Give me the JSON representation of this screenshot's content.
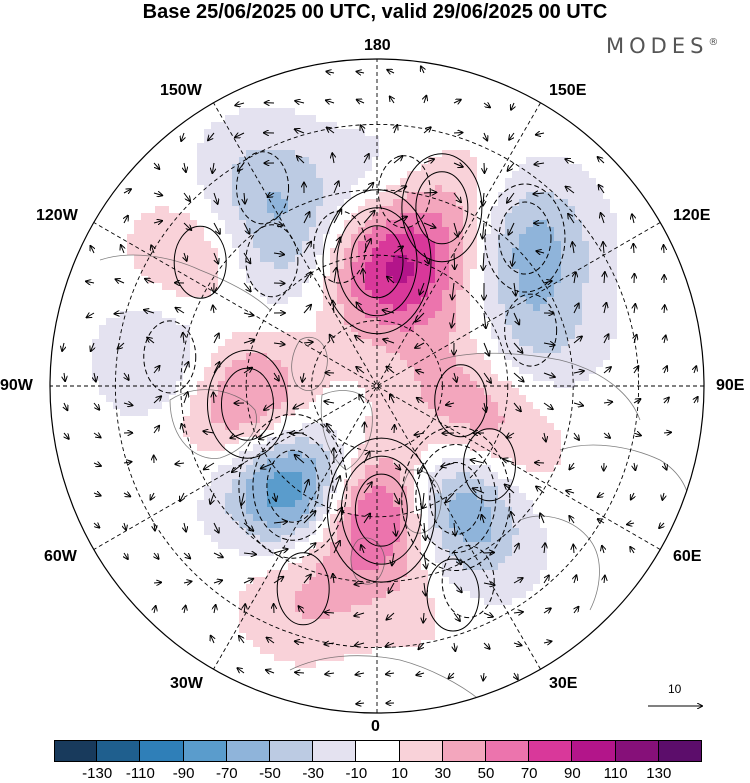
{
  "title": "Base 25/06/2025 00 UTC, valid 29/06/2025 00 UTC",
  "brand": {
    "text": "MODES",
    "mark": "®"
  },
  "longitude_labels": {
    "top": "180",
    "bottom": "0",
    "left": "90W",
    "right": "90E",
    "upper_left_1": "150W",
    "upper_left_2": "120W",
    "upper_right_1": "150E",
    "upper_right_2": "120E",
    "lower_left_1": "60W",
    "lower_left_2": "30W",
    "lower_right_1": "60E",
    "lower_right_2": "30E"
  },
  "reference_vector": {
    "label": "10"
  },
  "colorbar": {
    "levels": [
      "-130",
      "-110",
      "-90",
      "-70",
      "-50",
      "-30",
      "-10",
      "10",
      "30",
      "50",
      "70",
      "90",
      "110",
      "130"
    ],
    "colors": [
      "#183a5c",
      "#1f5f8e",
      "#2f7fb8",
      "#5a9ccc",
      "#8fb4da",
      "#bccbe3",
      "#e4e2f0",
      "#ffffff",
      "#f9d2d9",
      "#f3a6bd",
      "#ec74ad",
      "#d9389a",
      "#b3158a",
      "#861079",
      "#5c0d6b"
    ]
  },
  "anomaly_centers": [
    {
      "lon": 180,
      "colat": 19,
      "value": 100
    },
    {
      "lon": 160,
      "colat": 29,
      "value": 60
    },
    {
      "lon": 135,
      "colat": 32,
      "value": -60
    },
    {
      "lon": 172,
      "colat": 30,
      "value": -40
    },
    {
      "lon": 110,
      "colat": 25,
      "value": -40
    },
    {
      "lon": 80,
      "colat": 13,
      "value": 35
    },
    {
      "lon": 55,
      "colat": 21,
      "value": 50
    },
    {
      "lon": 35,
      "colat": 21,
      "value": -115
    },
    {
      "lon": 25,
      "colat": 33,
      "value": -40
    },
    {
      "lon": 2,
      "colat": 19,
      "value": 110
    },
    {
      "lon": -40,
      "colat": 20,
      "value": -110
    },
    {
      "lon": -82,
      "colat": 20,
      "value": 70
    },
    {
      "lon": -98,
      "colat": 32,
      "value": -40
    },
    {
      "lon": -125,
      "colat": 33,
      "value": 40
    },
    {
      "lon": -150,
      "colat": 35,
      "value": -40
    },
    {
      "lon": -140,
      "colat": 25,
      "value": -30
    },
    {
      "lon": -165,
      "colat": 22,
      "value": -35
    },
    {
      "lon": 145,
      "colat": 16,
      "value": 25
    },
    {
      "lon": 20,
      "colat": 34,
      "value": 40
    },
    {
      "lon": -20,
      "colat": 33,
      "value": 35
    }
  ]
}
